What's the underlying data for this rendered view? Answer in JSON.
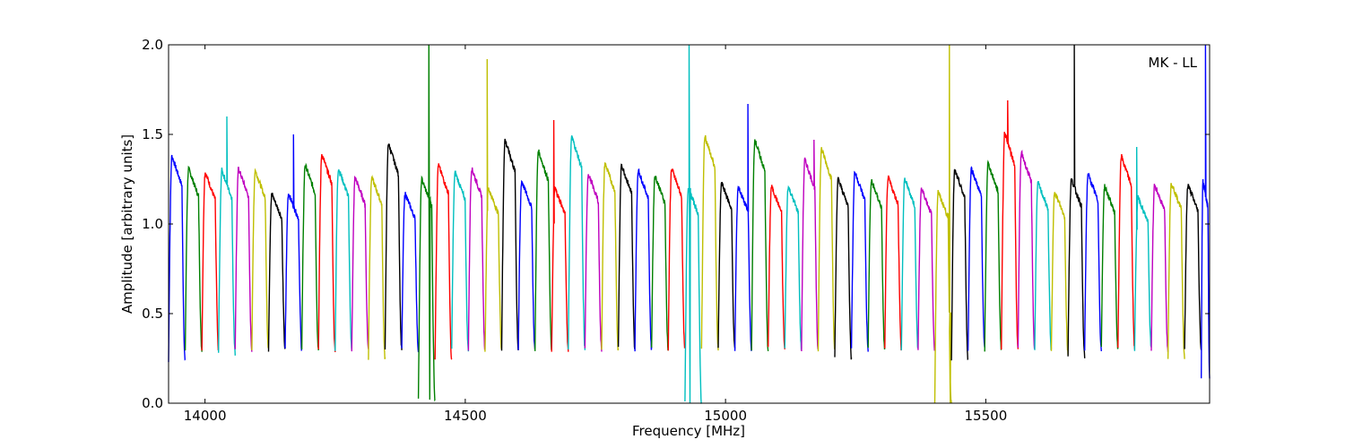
{
  "chart_data": {
    "type": "line",
    "xlabel": "Frequency [MHz]",
    "ylabel": "Amplitude [arbitrary units]",
    "annotation": "MK - LL",
    "annotation_position": "top-right",
    "xlim": [
      13930,
      15930
    ],
    "ylim": [
      0,
      2.0
    ],
    "xticks": [
      14000,
      14500,
      15000,
      15500
    ],
    "yticks": [
      0.0,
      0.5,
      1.0,
      1.5,
      2.0
    ],
    "xtick_labels": [
      "14000",
      "14500",
      "15000",
      "15500"
    ],
    "ytick_labels": [
      "0.0",
      "0.5",
      "1.0",
      "1.5",
      "2.0"
    ],
    "grid": false,
    "legend": "none",
    "colors": [
      "#0000ff",
      "#008000",
      "#ff0000",
      "#00bfbf",
      "#bf00bf",
      "#bfbf00",
      "#000000"
    ],
    "channel_width_mhz": 32,
    "channel_start_mhz": 13930,
    "series": [
      {
        "color": "#0000ff",
        "x": [
          13930,
          13962
        ],
        "peak": 1.38,
        "floor": 0.23
      },
      {
        "color": "#008000",
        "x": [
          13962,
          13994
        ],
        "peak": 1.31,
        "floor": 0.3
      },
      {
        "color": "#ff0000",
        "x": [
          13994,
          14026
        ],
        "peak": 1.29,
        "floor": 0.3
      },
      {
        "color": "#00bfbf",
        "x": [
          14026,
          14058
        ],
        "peak": 1.3,
        "floor": 0.28,
        "spike": {
          "x": 14042,
          "y": 1.6
        }
      },
      {
        "color": "#bf00bf",
        "x": [
          14058,
          14090
        ],
        "peak": 1.31,
        "floor": 0.3
      },
      {
        "color": "#bfbf00",
        "x": [
          14090,
          14122
        ],
        "peak": 1.3,
        "floor": 0.3
      },
      {
        "color": "#000000",
        "x": [
          14122,
          14154
        ],
        "peak": 1.17,
        "floor": 0.3
      },
      {
        "color": "#0000ff",
        "x": [
          14154,
          14186
        ],
        "peak": 1.17,
        "floor": 0.3,
        "spike": {
          "x": 14170,
          "y": 1.5
        }
      },
      {
        "color": "#008000",
        "x": [
          14186,
          14218
        ],
        "peak": 1.33,
        "floor": 0.3
      },
      {
        "color": "#ff0000",
        "x": [
          14218,
          14250
        ],
        "peak": 1.39,
        "floor": 0.3
      },
      {
        "color": "#00bfbf",
        "x": [
          14250,
          14282
        ],
        "peak": 1.31,
        "floor": 0.3
      },
      {
        "color": "#bf00bf",
        "x": [
          14282,
          14314
        ],
        "peak": 1.26,
        "floor": 0.3
      },
      {
        "color": "#bfbf00",
        "x": [
          14314,
          14346
        ],
        "peak": 1.26,
        "floor": 0.25
      },
      {
        "color": "#000000",
        "x": [
          14346,
          14378
        ],
        "peak": 1.45,
        "floor": 0.3
      },
      {
        "color": "#0000ff",
        "x": [
          14378,
          14410
        ],
        "peak": 1.17,
        "floor": 0.3
      },
      {
        "color": "#008000",
        "x": [
          14410,
          14442
        ],
        "peak": 1.25,
        "floor": 0.02,
        "spike": {
          "x": 14430,
          "y": 2.0
        }
      },
      {
        "color": "#ff0000",
        "x": [
          14442,
          14474
        ],
        "peak": 1.33,
        "floor": 0.23
      },
      {
        "color": "#00bfbf",
        "x": [
          14474,
          14506
        ],
        "peak": 1.29,
        "floor": 0.3
      },
      {
        "color": "#bf00bf",
        "x": [
          14506,
          14538
        ],
        "peak": 1.31,
        "floor": 0.3
      },
      {
        "color": "#bfbf00",
        "x": [
          14538,
          14570
        ],
        "peak": 1.2,
        "floor": 0.3,
        "spike": {
          "x": 14542,
          "y": 1.92
        }
      },
      {
        "color": "#000000",
        "x": [
          14570,
          14602
        ],
        "peak": 1.47,
        "floor": 0.3
      },
      {
        "color": "#0000ff",
        "x": [
          14602,
          14634
        ],
        "peak": 1.24,
        "floor": 0.3
      },
      {
        "color": "#008000",
        "x": [
          14634,
          14666
        ],
        "peak": 1.41,
        "floor": 0.3
      },
      {
        "color": "#ff0000",
        "x": [
          14666,
          14698
        ],
        "peak": 1.2,
        "floor": 0.3,
        "spike": {
          "x": 14670,
          "y": 1.58
        }
      },
      {
        "color": "#00bfbf",
        "x": [
          14698,
          14730
        ],
        "peak": 1.49,
        "floor": 0.3
      },
      {
        "color": "#bf00bf",
        "x": [
          14730,
          14762
        ],
        "peak": 1.28,
        "floor": 0.3
      },
      {
        "color": "#bfbf00",
        "x": [
          14762,
          14794
        ],
        "peak": 1.34,
        "floor": 0.3
      },
      {
        "color": "#000000",
        "x": [
          14794,
          14826
        ],
        "peak": 1.33,
        "floor": 0.3
      },
      {
        "color": "#0000ff",
        "x": [
          14826,
          14858
        ],
        "peak": 1.3,
        "floor": 0.3
      },
      {
        "color": "#008000",
        "x": [
          14858,
          14890
        ],
        "peak": 1.27,
        "floor": 0.3
      },
      {
        "color": "#ff0000",
        "x": [
          14890,
          14922
        ],
        "peak": 1.31,
        "floor": 0.3
      },
      {
        "color": "#00bfbf",
        "x": [
          14922,
          14954
        ],
        "peak": 1.2,
        "floor": 0.0,
        "spike": {
          "x": 14930,
          "y": 2.0
        }
      },
      {
        "color": "#bfbf00",
        "x": [
          14954,
          14986
        ],
        "peak": 1.49,
        "floor": 0.3
      },
      {
        "color": "#000000",
        "x": [
          14986,
          15018
        ],
        "peak": 1.23,
        "floor": 0.3
      },
      {
        "color": "#0000ff",
        "x": [
          15018,
          15050
        ],
        "peak": 1.21,
        "floor": 0.3,
        "spike": {
          "x": 15043,
          "y": 1.67
        }
      },
      {
        "color": "#008000",
        "x": [
          15050,
          15082
        ],
        "peak": 1.47,
        "floor": 0.3
      },
      {
        "color": "#ff0000",
        "x": [
          15082,
          15114
        ],
        "peak": 1.21,
        "floor": 0.3
      },
      {
        "color": "#00bfbf",
        "x": [
          15114,
          15146
        ],
        "peak": 1.21,
        "floor": 0.3
      },
      {
        "color": "#bf00bf",
        "x": [
          15146,
          15178
        ],
        "peak": 1.36,
        "floor": 0.3,
        "spike": {
          "x": 15170,
          "y": 1.47
        }
      },
      {
        "color": "#bfbf00",
        "x": [
          15178,
          15210
        ],
        "peak": 1.42,
        "floor": 0.3
      },
      {
        "color": "#000000",
        "x": [
          15210,
          15242
        ],
        "peak": 1.25,
        "floor": 0.25
      },
      {
        "color": "#0000ff",
        "x": [
          15242,
          15274
        ],
        "peak": 1.29,
        "floor": 0.3
      },
      {
        "color": "#008000",
        "x": [
          15274,
          15306
        ],
        "peak": 1.24,
        "floor": 0.3
      },
      {
        "color": "#ff0000",
        "x": [
          15306,
          15338
        ],
        "peak": 1.26,
        "floor": 0.3
      },
      {
        "color": "#00bfbf",
        "x": [
          15338,
          15370
        ],
        "peak": 1.25,
        "floor": 0.3
      },
      {
        "color": "#bf00bf",
        "x": [
          15370,
          15402
        ],
        "peak": 1.2,
        "floor": 0.3
      },
      {
        "color": "#bfbf00",
        "x": [
          15402,
          15434
        ],
        "peak": 1.18,
        "floor": 0.0,
        "spike": {
          "x": 15430,
          "y": 2.0
        }
      },
      {
        "color": "#000000",
        "x": [
          15434,
          15466
        ],
        "peak": 1.3,
        "floor": 0.24
      },
      {
        "color": "#0000ff",
        "x": [
          15466,
          15498
        ],
        "peak": 1.31,
        "floor": 0.3
      },
      {
        "color": "#008000",
        "x": [
          15498,
          15530
        ],
        "peak": 1.34,
        "floor": 0.3
      },
      {
        "color": "#ff0000",
        "x": [
          15530,
          15562
        ],
        "peak": 1.51,
        "floor": 0.3,
        "spike": {
          "x": 15542,
          "y": 1.69
        }
      },
      {
        "color": "#bf00bf",
        "x": [
          15562,
          15594
        ],
        "peak": 1.4,
        "floor": 0.3
      },
      {
        "color": "#00bfbf",
        "x": [
          15594,
          15626
        ],
        "peak": 1.23,
        "floor": 0.3
      },
      {
        "color": "#bfbf00",
        "x": [
          15626,
          15658
        ],
        "peak": 1.18,
        "floor": 0.28
      },
      {
        "color": "#000000",
        "x": [
          15658,
          15690
        ],
        "peak": 1.25,
        "floor": 0.26,
        "spike": {
          "x": 15670,
          "y": 2.0
        }
      },
      {
        "color": "#0000ff",
        "x": [
          15690,
          15722
        ],
        "peak": 1.28,
        "floor": 0.3
      },
      {
        "color": "#008000",
        "x": [
          15722,
          15754
        ],
        "peak": 1.21,
        "floor": 0.3
      },
      {
        "color": "#ff0000",
        "x": [
          15754,
          15786
        ],
        "peak": 1.38,
        "floor": 0.3
      },
      {
        "color": "#00bfbf",
        "x": [
          15786,
          15818
        ],
        "peak": 1.15,
        "floor": 0.3,
        "spike": {
          "x": 15790,
          "y": 1.43
        }
      },
      {
        "color": "#bf00bf",
        "x": [
          15818,
          15850
        ],
        "peak": 1.22,
        "floor": 0.3
      },
      {
        "color": "#bfbf00",
        "x": [
          15850,
          15882
        ],
        "peak": 1.23,
        "floor": 0.26
      },
      {
        "color": "#000000",
        "x": [
          15882,
          15914
        ],
        "peak": 1.22,
        "floor": 0.3
      },
      {
        "color": "#0000ff",
        "x": [
          15914,
          15930
        ],
        "peak": 1.24,
        "floor": 0.15,
        "spike": {
          "x": 15922,
          "y": 2.0
        }
      }
    ]
  }
}
